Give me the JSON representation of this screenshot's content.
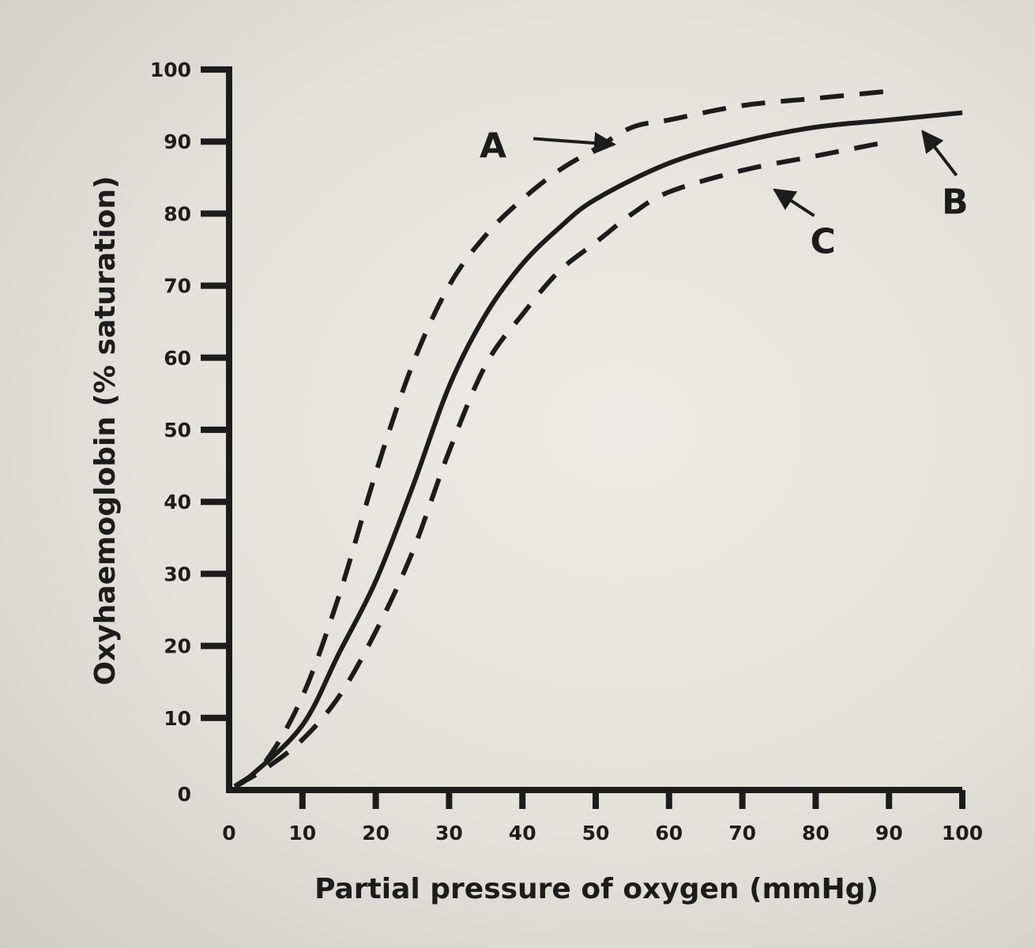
{
  "chart_data": {
    "type": "line",
    "xlabel": "Partial pressure of oxygen (mmHg)",
    "ylabel": "Oxyhaemoglobin (% saturation)",
    "xlim": [
      0,
      100
    ],
    "ylim": [
      0,
      100
    ],
    "x_ticks": [
      "0",
      "10",
      "20",
      "30",
      "40",
      "50",
      "60",
      "70",
      "80",
      "90",
      "100"
    ],
    "y_ticks": [
      "0",
      "10",
      "20",
      "30",
      "40",
      "50",
      "60",
      "70",
      "80",
      "90",
      "100"
    ],
    "grid": false,
    "series": [
      {
        "name": "A",
        "style": "dashed",
        "x": [
          5,
          10,
          15,
          20,
          25,
          30,
          35,
          40,
          45,
          50,
          55,
          60,
          70,
          80,
          90
        ],
        "y": [
          4,
          13,
          27,
          44,
          59,
          70,
          77,
          82,
          86,
          89,
          92,
          93,
          95,
          96,
          97
        ]
      },
      {
        "name": "B",
        "style": "solid",
        "x": [
          3,
          10,
          15,
          20,
          25,
          30,
          35,
          40,
          45,
          50,
          60,
          70,
          80,
          90,
          100
        ],
        "y": [
          2,
          9,
          19,
          29,
          42,
          56,
          66,
          73,
          78,
          82,
          87,
          90,
          92,
          93,
          94
        ]
      },
      {
        "name": "C",
        "style": "dashed",
        "x": [
          5,
          10,
          15,
          20,
          25,
          30,
          35,
          40,
          45,
          50,
          55,
          60,
          70,
          80,
          90
        ],
        "y": [
          3,
          7,
          13,
          22,
          33,
          47,
          59,
          66,
          72,
          76,
          80,
          83,
          86,
          88,
          90
        ]
      }
    ],
    "annotations": [
      {
        "label": "A",
        "target_x": 52,
        "target_y": 88
      },
      {
        "label": "B",
        "target_x": 95,
        "target_y": 92
      },
      {
        "label": "C",
        "target_x": 75,
        "target_y": 82
      }
    ]
  }
}
